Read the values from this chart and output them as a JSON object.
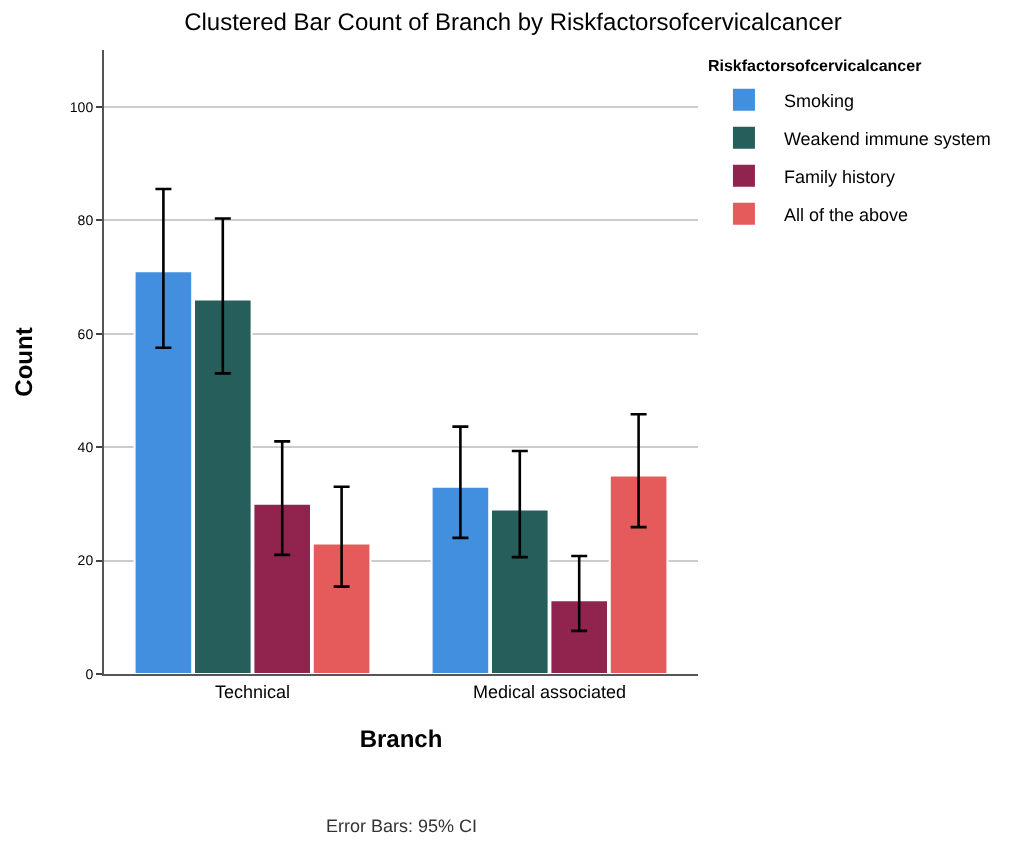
{
  "chart_data": {
    "type": "bar",
    "title": "Clustered Bar Count of Branch by Riskfactorsofcervicalcancer",
    "xlabel": "Branch",
    "ylabel": "Count",
    "legend_title": "Riskfactorsofcervicalcancer",
    "categories": [
      "Technical",
      "Medical associated"
    ],
    "series": [
      {
        "name": "Smoking",
        "color": "#418fde",
        "values": [
          71,
          33
        ],
        "errors": [
          [
            57.5,
            85.5
          ],
          [
            24,
            43.6
          ]
        ]
      },
      {
        "name": "Weakend immune system",
        "color": "#255e5a",
        "values": [
          66,
          29
        ],
        "errors": [
          [
            53,
            80.3
          ],
          [
            20.6,
            39.3
          ]
        ]
      },
      {
        "name": "Family history",
        "color": "#91244e",
        "values": [
          30,
          13
        ],
        "errors": [
          [
            21,
            41
          ],
          [
            7.6,
            20.8
          ]
        ]
      },
      {
        "name": "All of the above",
        "color": "#e55b5b",
        "values": [
          23,
          35
        ],
        "errors": [
          [
            15.4,
            33
          ],
          [
            25.9,
            45.8
          ]
        ]
      }
    ],
    "ylim": [
      0,
      110
    ],
    "yticks": [
      0,
      20,
      40,
      60,
      80,
      100
    ],
    "grid": "y",
    "legend": "top right",
    "annotations": [
      "Error Bars: 95% CI"
    ]
  }
}
